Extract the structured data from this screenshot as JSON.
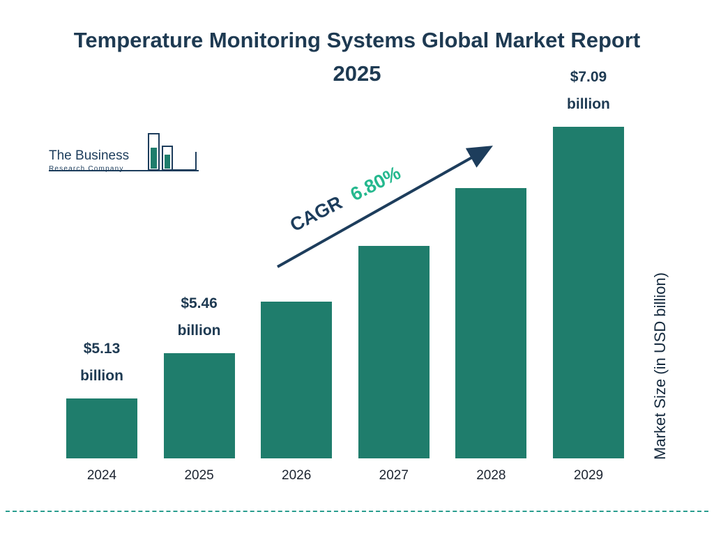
{
  "title": "Temperature Monitoring Systems Global Market Report 2025",
  "logo": {
    "line1": "The Business",
    "line2": "Research Company"
  },
  "cagr": {
    "label": "CAGR",
    "value": "6.80%"
  },
  "y_axis_label": "Market Size (in USD billion)",
  "colors": {
    "bar": "#1f7d6c",
    "title": "#1e3a52",
    "navy": "#1d3d5c",
    "cagr_value": "#25b88e",
    "dashed_line": "#2a9d8f"
  },
  "chart_data": {
    "type": "bar",
    "title": "Temperature Monitoring Systems Global Market Report 2025",
    "categories": [
      "2024",
      "2025",
      "2026",
      "2027",
      "2028",
      "2029"
    ],
    "values": [
      5.13,
      5.46,
      5.83,
      6.23,
      6.65,
      7.09
    ],
    "bar_labels": [
      {
        "value": "$5.13",
        "unit": "billion"
      },
      {
        "value": "$5.46",
        "unit": "billion"
      },
      null,
      null,
      null,
      {
        "value": "$7.09",
        "unit": "billion"
      }
    ],
    "xlabel": "",
    "ylabel": "Market Size (in USD billion)",
    "cagr": "6.80%",
    "value_scale": {
      "min": 4.7,
      "max": 7.09
    },
    "legend": "none",
    "grid": false
  }
}
